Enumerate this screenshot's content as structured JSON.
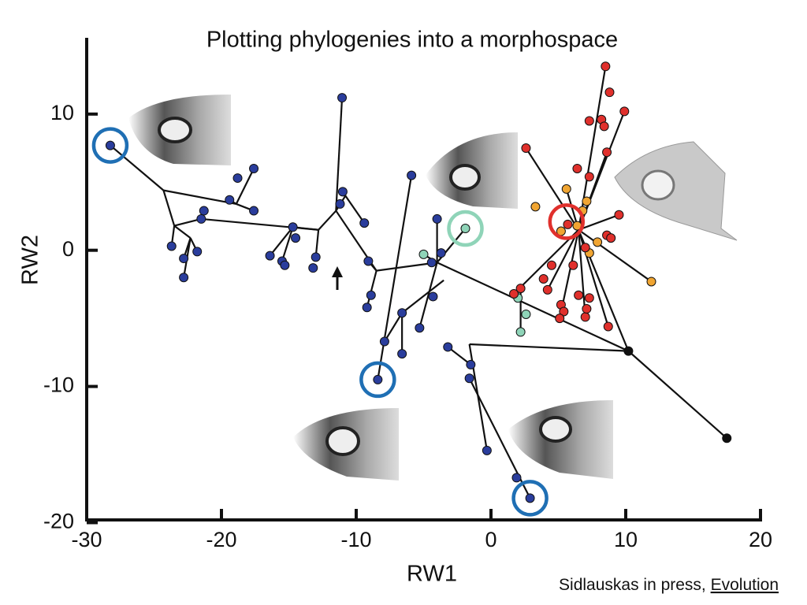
{
  "chart_data": {
    "type": "scatter",
    "title": "Plotting phylogenies into a morphospace",
    "x_label": "RW1",
    "y_label": "RW2",
    "citation": {
      "text": "Sidlauskas in press, ",
      "journal": "Evolution"
    },
    "xlim": [
      -30,
      20
    ],
    "ylim": [
      -19.8,
      15.6
    ],
    "xticks": [
      -30,
      -20,
      -10,
      0,
      10,
      20
    ],
    "yticks": [
      10,
      0,
      -10,
      -20
    ],
    "series": [
      {
        "color": "#2a3d9c",
        "x": [
          -28.25,
          -11.05,
          -17.6,
          -18.8,
          -19.4,
          -17.6,
          -21.3,
          -21.5,
          -21.8,
          -23.7,
          -22.8,
          -22.8,
          -11.0,
          -11.2,
          -9.4,
          -14.7,
          -14.5,
          -16.4,
          -15.5,
          -15.3,
          -13.0,
          -13.2,
          -9.1,
          -8.9,
          -9.2,
          -5.9,
          -4.0,
          -3.7,
          -4.4,
          -4.3,
          -5.3,
          -6.6,
          -7.9,
          -6.6,
          -8.4,
          -3.2,
          -1.5,
          -1.6,
          -0.3,
          1.9,
          2.9
        ],
        "values": [
          7.7,
          11.2,
          6.0,
          5.3,
          3.7,
          2.9,
          2.9,
          2.3,
          -0.1,
          0.3,
          -0.6,
          -2.0,
          4.3,
          3.4,
          2.0,
          1.7,
          0.9,
          -0.4,
          -0.8,
          -1.1,
          -0.5,
          -1.3,
          -0.8,
          -3.3,
          -4.2,
          5.5,
          2.3,
          -0.2,
          -0.9,
          -3.4,
          -5.7,
          -4.6,
          -6.7,
          -7.6,
          -9.5,
          -7.1,
          -8.4,
          -9.4,
          -14.7,
          -16.7,
          -18.2
        ]
      },
      {
        "color": "#8fd4b8",
        "x": [
          -5.0,
          -1.9,
          2.0,
          2.6,
          2.2
        ],
        "values": [
          -0.3,
          1.6,
          -3.5,
          -4.7,
          -6.0
        ]
      },
      {
        "color": "#f0a532",
        "x": [
          5.6,
          3.3,
          7.1,
          5.2,
          6.4,
          7.9,
          7.3,
          11.9,
          6.8
        ],
        "values": [
          4.5,
          3.2,
          3.6,
          1.4,
          1.8,
          0.6,
          -0.2,
          -2.3,
          2.9
        ]
      },
      {
        "color": "#e0302c",
        "x": [
          8.5,
          8.8,
          7.3,
          8.2,
          9.9,
          8.4,
          8.6,
          2.6,
          6.4,
          7.3,
          9.5,
          5.7,
          8.6,
          8.9,
          7.0,
          6.1,
          4.5,
          3.9,
          2.2,
          1.7,
          4.2,
          6.5,
          7.3,
          5.2,
          5.4,
          5.1,
          7.0,
          8.7,
          7.1
        ],
        "values": [
          13.5,
          11.6,
          9.5,
          9.6,
          10.2,
          9.1,
          7.2,
          7.5,
          6.0,
          5.4,
          2.6,
          1.9,
          1.1,
          0.9,
          0.2,
          -1.1,
          -1.1,
          -2.1,
          -2.8,
          -3.2,
          -2.9,
          -3.3,
          -3.5,
          -4.0,
          -4.5,
          -5.0,
          -4.9,
          -5.6,
          -4.3
        ]
      },
      {
        "color": "#111111",
        "x": [
          10.2,
          17.5
        ],
        "values": [
          -7.4,
          -13.8
        ]
      }
    ],
    "branches": [
      [
        -28.25,
        7.7,
        -24.3,
        4.4
      ],
      [
        -24.3,
        4.4,
        -18.9,
        3.4
      ],
      [
        -18.9,
        3.4,
        -17.6,
        6.0
      ],
      [
        -18.9,
        3.4,
        -17.6,
        2.9
      ],
      [
        -18.9,
        3.4,
        -19.4,
        3.7
      ],
      [
        -24.3,
        4.4,
        -23.5,
        1.8
      ],
      [
        -23.5,
        1.8,
        -23.7,
        0.3
      ],
      [
        -23.5,
        1.8,
        -22.3,
        0.9
      ],
      [
        -22.3,
        0.9,
        -22.8,
        -0.6
      ],
      [
        -22.3,
        0.9,
        -22.8,
        -2.0
      ],
      [
        -22.3,
        0.9,
        -21.8,
        -0.1
      ],
      [
        -23.5,
        1.8,
        -21.5,
        2.3
      ],
      [
        -21.5,
        2.3,
        -21.3,
        2.9
      ],
      [
        -21.5,
        2.3,
        -12.8,
        1.5
      ],
      [
        -12.8,
        1.5,
        -14.7,
        1.7
      ],
      [
        -14.7,
        1.7,
        -15.5,
        -0.8
      ],
      [
        -14.7,
        1.7,
        -16.4,
        -0.4
      ],
      [
        -12.8,
        1.5,
        -13.0,
        -0.5
      ],
      [
        -12.8,
        1.5,
        -11.5,
        2.9
      ],
      [
        -11.5,
        2.9,
        -11.05,
        11.2
      ],
      [
        -11.5,
        2.9,
        -10.8,
        4.0
      ],
      [
        -10.8,
        4.0,
        -11.0,
        4.3
      ],
      [
        -10.8,
        4.0,
        -9.4,
        2.0
      ],
      [
        -11.5,
        2.9,
        -8.5,
        -1.5
      ],
      [
        -8.5,
        -1.5,
        -9.1,
        -0.8
      ],
      [
        -8.5,
        -1.5,
        -9.2,
        -4.2
      ],
      [
        -8.5,
        -1.5,
        -4.0,
        -0.9
      ],
      [
        -4.0,
        -0.9,
        -4.0,
        2.3
      ],
      [
        -4.0,
        -0.9,
        -1.9,
        1.6
      ],
      [
        -4.0,
        -0.9,
        10.2,
        -7.4
      ],
      [
        10.2,
        -7.4,
        17.5,
        -13.8
      ],
      [
        -1.6,
        -6.9,
        10.2,
        -7.4
      ],
      [
        -5.9,
        5.5,
        -8.4,
        -9.5
      ],
      [
        -6.6,
        -4.6,
        -3.5,
        -2.2
      ],
      [
        -6.6,
        -4.6,
        -7.9,
        -6.7
      ],
      [
        -6.6,
        -4.6,
        -6.6,
        -7.6
      ],
      [
        -3.2,
        -7.1,
        -1.5,
        -8.4
      ],
      [
        -1.6,
        -6.9,
        -0.3,
        -14.7
      ],
      [
        -1.6,
        -9.4,
        2.9,
        -18.2
      ],
      [
        -4.0,
        -0.9,
        -5.3,
        -5.7
      ],
      [
        -4.0,
        -0.9,
        -5.0,
        -0.3
      ],
      [
        6.5,
        1.5,
        8.5,
        13.5
      ],
      [
        6.5,
        1.5,
        2.6,
        7.5
      ],
      [
        6.5,
        1.5,
        1.7,
        -3.2
      ],
      [
        6.5,
        1.5,
        7.0,
        -4.9
      ],
      [
        6.5,
        1.5,
        11.9,
        -2.3
      ],
      [
        6.5,
        1.5,
        8.6,
        7.2
      ],
      [
        6.5,
        1.5,
        4.2,
        -2.9
      ],
      [
        6.5,
        1.5,
        9.5,
        2.6
      ],
      [
        10.2,
        -7.4,
        6.5,
        1.5
      ],
      [
        2.2,
        -2.8,
        2.2,
        -6.0
      ],
      [
        6.5,
        1.5,
        5.1,
        -5.0
      ],
      [
        6.5,
        1.5,
        8.7,
        -5.6
      ],
      [
        6.5,
        1.5,
        5.6,
        4.5
      ],
      [
        6.5,
        1.5,
        9.9,
        10.2
      ]
    ],
    "highlights": [
      {
        "x": -28.25,
        "y": 7.7,
        "color": "#1f6fb4"
      },
      {
        "x": -8.4,
        "y": -9.5,
        "color": "#1f6fb4"
      },
      {
        "x": 2.9,
        "y": -18.2,
        "color": "#1f6fb4"
      },
      {
        "x": -1.9,
        "y": 1.6,
        "color": "#8fd4b8"
      },
      {
        "x": 5.6,
        "y": 2.1,
        "color": "#e0302c"
      }
    ]
  }
}
